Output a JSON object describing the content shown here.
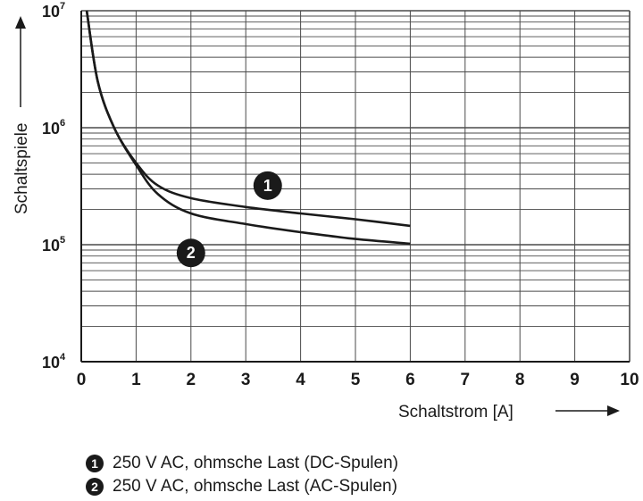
{
  "chart_data": {
    "type": "line",
    "xlabel": "Schaltstrom [A]",
    "ylabel": "Schaltspiele",
    "xlim": [
      0,
      10
    ],
    "ylim": [
      10000,
      10000000
    ],
    "y_scale": "log",
    "grid": true,
    "x_ticks": [
      "0",
      "1",
      "2",
      "3",
      "4",
      "5",
      "6",
      "7",
      "8",
      "9",
      "10"
    ],
    "y_ticks": [
      {
        "base": "10",
        "exp": "4",
        "value": 10000
      },
      {
        "base": "10",
        "exp": "5",
        "value": 100000
      },
      {
        "base": "10",
        "exp": "6",
        "value": 1000000
      },
      {
        "base": "10",
        "exp": "7",
        "value": 10000000
      }
    ],
    "series": [
      {
        "name": "1",
        "label": "250 V AC, ohmsche Last (DC-Spulen)",
        "x": [
          0.1,
          0.3,
          0.6,
          1.0,
          1.4,
          2.0,
          3.0,
          4.0,
          5.0,
          6.0
        ],
        "y": [
          10000000,
          2500000,
          1000000,
          500000,
          320000,
          250000,
          210000,
          185000,
          165000,
          145000
        ]
      },
      {
        "name": "2",
        "label": "250 V AC, ohmsche Last (AC-Spulen)",
        "x": [
          0.1,
          0.3,
          0.6,
          1.0,
          1.4,
          2.0,
          3.0,
          4.0,
          5.0,
          6.0
        ],
        "y": [
          10000000,
          2500000,
          1000000,
          480000,
          270000,
          185000,
          150000,
          128000,
          112000,
          102000
        ]
      }
    ],
    "markers": [
      {
        "label": "1",
        "x": 3.4,
        "y": 320000
      },
      {
        "label": "2",
        "x": 2.0,
        "y": 85000
      }
    ]
  },
  "legend": [
    {
      "badge": "1",
      "text": "250 V AC, ohmsche Last (DC-Spulen)"
    },
    {
      "badge": "2",
      "text": "250 V AC, ohmsche Last (AC-Spulen)"
    }
  ],
  "colors": {
    "ink": "#1a1a1a",
    "grid": "#4a4a4a",
    "background": "#ffffff"
  }
}
